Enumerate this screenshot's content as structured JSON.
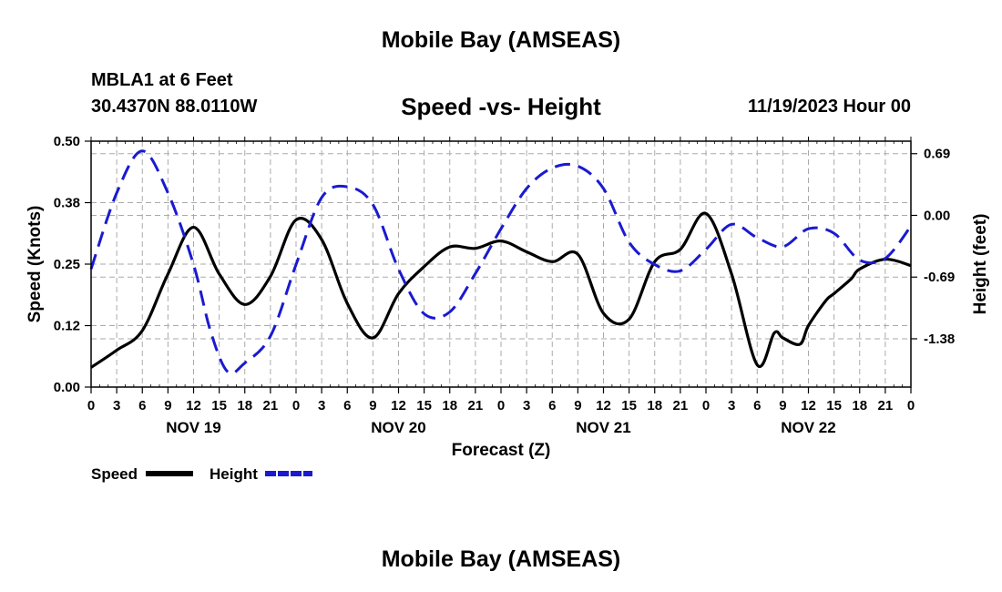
{
  "header": {
    "title": "Mobile Bay (AMSEAS)",
    "station": "MBLA1 at 6 Feet",
    "coords": "30.4370N  88.0110W",
    "plot_title": "Speed -vs- Height",
    "run_time": "11/19/2023 Hour 00"
  },
  "footer": {
    "title": "Mobile Bay (AMSEAS)"
  },
  "chart_data": {
    "type": "line",
    "xlabel": "Forecast (Z)",
    "ylabel": "Speed (Knots)",
    "y2label": "Height (feet)",
    "xlim": [
      0,
      96
    ],
    "ylim": [
      0,
      0.5
    ],
    "y2lim": [
      -1.92,
      0.83
    ],
    "y_ticks": [
      "0.00",
      "0.12",
      "0.25",
      "0.38",
      "0.50"
    ],
    "y_tick_values": [
      0,
      0.125,
      0.25,
      0.375,
      0.5
    ],
    "y2_ticks": [
      "0.69",
      "0.00",
      "-0.69",
      "-1.38"
    ],
    "y2_tick_values": [
      0.69,
      0,
      -0.69,
      -1.38
    ],
    "x_tick_labels": [
      "0",
      "3",
      "6",
      "9",
      "12",
      "15",
      "18",
      "21",
      "0",
      "3",
      "6",
      "9",
      "12",
      "15",
      "18",
      "21",
      "0",
      "3",
      "6",
      "9",
      "12",
      "15",
      "18",
      "21",
      "0",
      "3",
      "6",
      "9",
      "12",
      "15",
      "18",
      "21",
      "0"
    ],
    "day_labels": [
      {
        "label": "NOV 19",
        "hour": 12
      },
      {
        "label": "NOV 20",
        "hour": 36
      },
      {
        "label": "NOV 21",
        "hour": 60
      },
      {
        "label": "NOV 22",
        "hour": 84
      }
    ],
    "legend": [
      {
        "name": "Speed",
        "color": "#000000",
        "style": "solid"
      },
      {
        "name": "Height",
        "color": "#1a1ad0",
        "style": "dashed"
      }
    ],
    "series": [
      {
        "name": "Speed",
        "axis": "left",
        "color": "#000000",
        "x": [
          0,
          3,
          6,
          9,
          12,
          15,
          18,
          21,
          24,
          27,
          30,
          33,
          36,
          39,
          42,
          45,
          48,
          51,
          54,
          57,
          60,
          63,
          66,
          69,
          72,
          75,
          78,
          80,
          81,
          83,
          84,
          86,
          87,
          89,
          90,
          93,
          96
        ],
        "y": [
          0.04,
          0.075,
          0.115,
          0.23,
          0.325,
          0.23,
          0.168,
          0.225,
          0.34,
          0.3,
          0.17,
          0.1,
          0.19,
          0.245,
          0.285,
          0.282,
          0.297,
          0.275,
          0.255,
          0.27,
          0.15,
          0.138,
          0.255,
          0.28,
          0.353,
          0.23,
          0.045,
          0.11,
          0.1,
          0.087,
          0.125,
          0.175,
          0.19,
          0.22,
          0.24,
          0.26,
          0.247
        ]
      },
      {
        "name": "Height",
        "axis": "right",
        "color": "#1a1ad0",
        "x": [
          0,
          3,
          6,
          9,
          12,
          14,
          16,
          18,
          21,
          24,
          27,
          30,
          33,
          36,
          39,
          42,
          45,
          48,
          51,
          54,
          57,
          60,
          63,
          66,
          69,
          72,
          75,
          78,
          81,
          84,
          87,
          90,
          93,
          96
        ],
        "y": [
          -0.6,
          0.25,
          0.72,
          0.25,
          -0.55,
          -1.3,
          -1.75,
          -1.65,
          -1.35,
          -0.55,
          0.2,
          0.32,
          0.12,
          -0.6,
          -1.1,
          -1.08,
          -0.65,
          -0.15,
          0.3,
          0.53,
          0.55,
          0.3,
          -0.3,
          -0.55,
          -0.62,
          -0.38,
          -0.1,
          -0.25,
          -0.35,
          -0.15,
          -0.2,
          -0.5,
          -0.48,
          -0.12
        ]
      }
    ]
  }
}
